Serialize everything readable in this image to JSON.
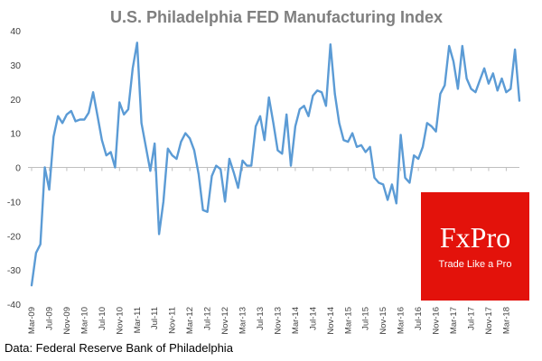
{
  "brand": {
    "name": "FxPro",
    "tagline": "Trade Like a Pro",
    "background_color": "#e3120b",
    "text_color": "#ffffff"
  },
  "source": "Data: Federal Reserve Bank of Philadelphia",
  "chart_data": {
    "type": "line",
    "title": "U.S. Philadelphia  FED Manufacturing  Index",
    "xlabel": "",
    "ylabel": "",
    "ylim": [
      -40,
      40
    ],
    "yticks": [
      40,
      30,
      20,
      10,
      0,
      -10,
      -20,
      -30,
      -40
    ],
    "grid": false,
    "line_color": "#5b9bd5",
    "x_tick_labels": [
      "Mar-09",
      "Jul-09",
      "Nov-09",
      "Mar-10",
      "Jul-10",
      "Nov-10",
      "Mar-11",
      "Jul-11",
      "Nov-11",
      "Mar-12",
      "Jul-12",
      "Nov-12",
      "Mar-13",
      "Jul-13",
      "Nov-13",
      "Mar-14",
      "Jul-14",
      "Nov-14",
      "Mar-15",
      "Jul-15",
      "Nov-15",
      "Mar-16",
      "Jul-16",
      "Nov-16",
      "Mar-17",
      "Jul-17",
      "Nov-17",
      "Mar-18"
    ],
    "x_start": "Mar-09",
    "x_end": "Jun-18",
    "series": [
      {
        "name": "Philadelphia FED Manufacturing Index",
        "values": [
          -34.5,
          -25,
          -22.5,
          0,
          -6.5,
          9,
          15,
          13,
          15.5,
          16.5,
          13.5,
          14,
          14,
          16,
          22,
          15,
          8,
          3.5,
          4.5,
          0,
          19,
          15.5,
          17,
          29,
          36.5,
          13,
          6,
          -1,
          7,
          -19.5,
          -10,
          5.5,
          3.5,
          2.5,
          7.5,
          10,
          8.5,
          5,
          -2,
          -12.5,
          -13,
          -2.5,
          0.5,
          -0.5,
          -10,
          2.5,
          -1.5,
          -6,
          2,
          0.5,
          0.5,
          12,
          15,
          8,
          20.5,
          13,
          5,
          4,
          15.5,
          0.5,
          12,
          17,
          18,
          15,
          21,
          22.5,
          22,
          18,
          36,
          21.5,
          13,
          8,
          7.5,
          10,
          6,
          6.5,
          4.5,
          6,
          -3,
          -4.5,
          -5,
          -9.5,
          -5,
          -10.5,
          9.5,
          -3,
          -4.5,
          3.5,
          2.5,
          6,
          13,
          12,
          10.5,
          21.5,
          24,
          35.5,
          31,
          23,
          35.5,
          26,
          23,
          22,
          25.5,
          29,
          24.5,
          27.5,
          22.5,
          26,
          22,
          23,
          34.5,
          19.5
        ]
      }
    ]
  }
}
